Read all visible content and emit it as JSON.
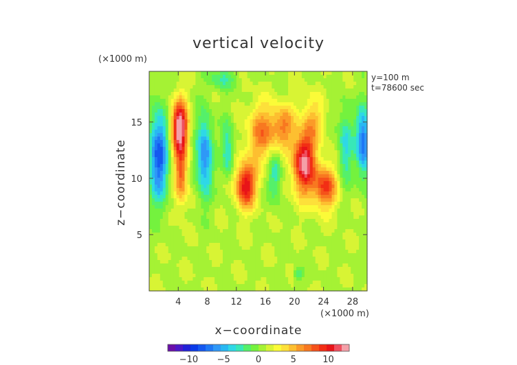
{
  "chart_data": {
    "type": "heatmap",
    "title": "vertical velocity",
    "xlabel": "x−coordinate",
    "ylabel": "z−coordinate",
    "x_unit": "(×1000 m)",
    "y_unit": "(×1000 m)",
    "xlim": [
      0,
      30
    ],
    "ylim": [
      0,
      19.5
    ],
    "x_ticks": [
      4,
      8,
      12,
      16,
      20,
      24,
      28
    ],
    "y_ticks": [
      5,
      10,
      15
    ],
    "annotations": [
      "y=100 m",
      "t=78600 sec"
    ],
    "colorbar": {
      "range": [
        -13,
        13
      ],
      "ticks": [
        -10,
        -5,
        0,
        5,
        10
      ],
      "tick_labels": [
        "−10",
        "−5",
        "0",
        "5",
        "10"
      ]
    },
    "background": 0.9,
    "features": [
      {
        "x": 1.3,
        "z": 12.0,
        "sx": 1.3,
        "sz": 4.0,
        "v": -9.0
      },
      {
        "x": 4.2,
        "z": 14.5,
        "sx": 1.1,
        "sz": 2.4,
        "v": 12.5
      },
      {
        "x": 4.4,
        "z": 10.2,
        "sx": 0.9,
        "sz": 2.5,
        "v": 6.5
      },
      {
        "x": 7.6,
        "z": 12.0,
        "sx": 1.1,
        "sz": 3.5,
        "v": -7.5
      },
      {
        "x": 10.8,
        "z": 12.5,
        "sx": 0.8,
        "sz": 2.5,
        "v": -4.5
      },
      {
        "x": 13.3,
        "z": 9.4,
        "sx": 1.4,
        "sz": 2.0,
        "v": 10.0
      },
      {
        "x": 15.5,
        "z": 14.0,
        "sx": 1.9,
        "sz": 2.5,
        "v": 6.0
      },
      {
        "x": 17.3,
        "z": 10.3,
        "sx": 0.9,
        "sz": 2.4,
        "v": -4.0
      },
      {
        "x": 18.5,
        "z": 14.6,
        "sx": 1.6,
        "sz": 1.9,
        "v": 5.5
      },
      {
        "x": 21.3,
        "z": 11.3,
        "sx": 1.5,
        "sz": 2.6,
        "v": 11.5
      },
      {
        "x": 24.2,
        "z": 9.2,
        "sx": 1.6,
        "sz": 1.9,
        "v": 8.0
      },
      {
        "x": 22.5,
        "z": 15.0,
        "sx": 1.4,
        "sz": 2.2,
        "v": 4.0
      },
      {
        "x": 27.0,
        "z": 13.0,
        "sx": 1.0,
        "sz": 3.3,
        "v": -4.5
      },
      {
        "x": 29.5,
        "z": 13.2,
        "sx": 1.0,
        "sz": 3.0,
        "v": -8.5
      },
      {
        "x": 10.0,
        "z": 18.8,
        "sx": 2.0,
        "sz": 0.9,
        "v": -3.0
      },
      {
        "x": 20.5,
        "z": 1.5,
        "sx": 0.6,
        "sz": 0.6,
        "v": -3.0
      }
    ]
  }
}
